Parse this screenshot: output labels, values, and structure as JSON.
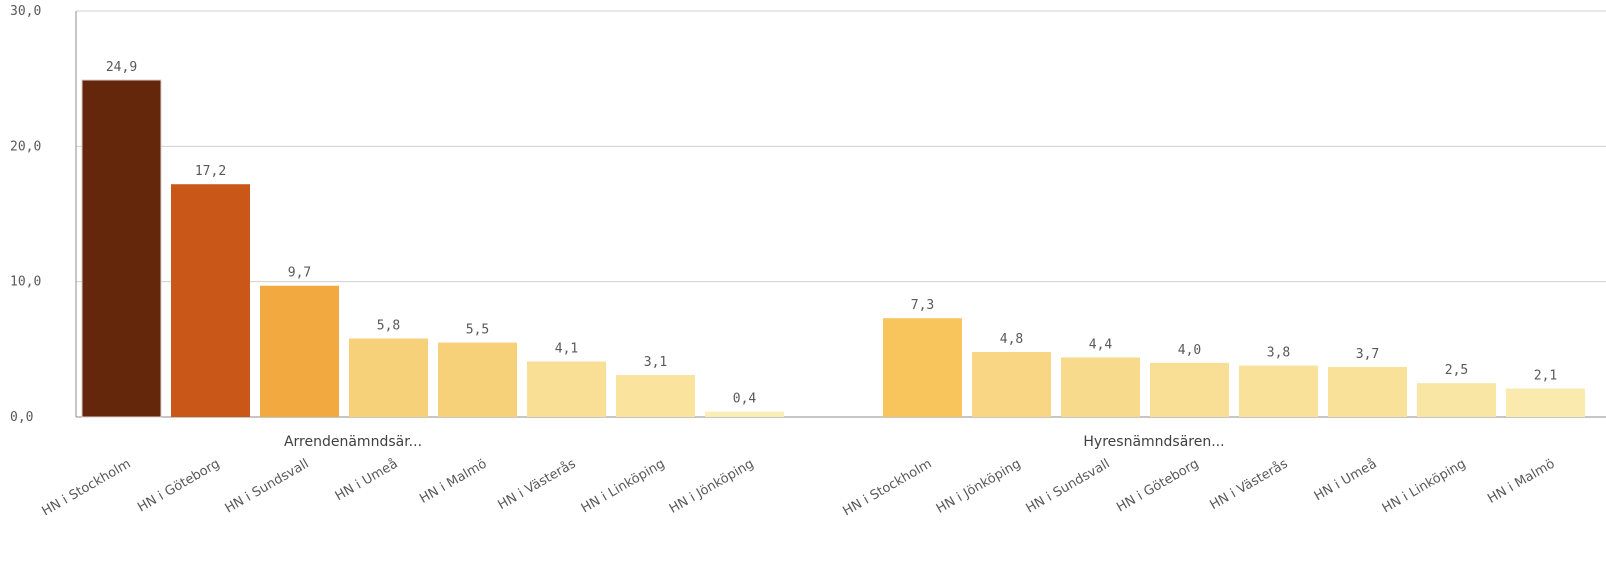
{
  "chart_data": {
    "type": "bar",
    "title": "",
    "xlabel": "",
    "ylabel": "",
    "ylim": [
      0,
      30
    ],
    "yticks": [
      "0,0",
      "10,0",
      "20,0",
      "30,0"
    ],
    "grid": true,
    "legend": "none",
    "groups": [
      {
        "name": "Arrendenämndsär...",
        "categories": [
          "HN i Stockholm",
          "HN i Göteborg",
          "HN i Sundsvall",
          "HN i Umeå",
          "HN i Malmö",
          "HN i Västerås",
          "HN i Linköping",
          "HN i Jönköping"
        ],
        "values": [
          24.9,
          17.2,
          9.7,
          5.8,
          5.5,
          4.1,
          3.1,
          0.4
        ],
        "labels": [
          "24,9",
          "17,2",
          "9,7",
          "5,8",
          "5,5",
          "4,1",
          "3,1",
          "0,4"
        ],
        "colors": [
          "#64270b",
          "#c85718",
          "#f2a93f",
          "#f7d07a",
          "#f7d07a",
          "#f9df95",
          "#f9e39d",
          "#fbedb6"
        ]
      },
      {
        "name": "Hyresnämndsären...",
        "categories": [
          "HN i Stockholm",
          "HN i Jönköping",
          "HN i Sundsvall",
          "HN i Göteborg",
          "HN i Västerås",
          "HN i Umeå",
          "HN i Linköping",
          "HN i Malmö"
        ],
        "values": [
          7.3,
          4.8,
          4.4,
          4.0,
          3.8,
          3.7,
          2.5,
          2.1
        ],
        "labels": [
          "7,3",
          "4,8",
          "4,4",
          "4,0",
          "3,8",
          "3,7",
          "2,5",
          "2,1"
        ],
        "colors": [
          "#f7c55c",
          "#f8d684",
          "#f8da8c",
          "#f9df95",
          "#f9e19a",
          "#f9e19a",
          "#f9e6a4",
          "#faeaae"
        ]
      }
    ]
  }
}
